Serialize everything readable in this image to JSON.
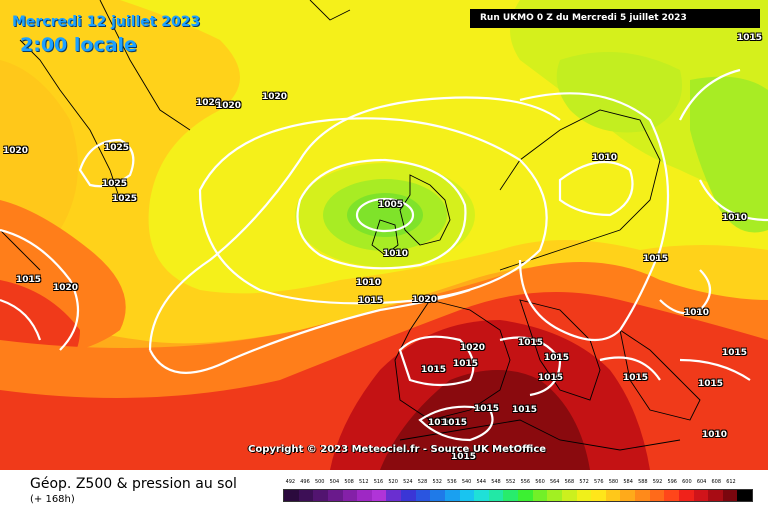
{
  "header": {
    "date": "Mercredi 12 juillet 2023",
    "time": "2:00 locale",
    "run": "Run UKMO 0 Z du Mercredi 5 juillet 2023"
  },
  "copyright": "Copyright © 2023 Meteociel.fr - Source UK MetOffice",
  "isobar_labels": [
    {
      "text": "1020"
    },
    {
      "text": "1025"
    },
    {
      "text": "1025"
    },
    {
      "text": "1025"
    },
    {
      "text": "1020"
    },
    {
      "text": "1020"
    },
    {
      "text": "1020"
    },
    {
      "text": "1005"
    },
    {
      "text": "1010"
    },
    {
      "text": "1010"
    },
    {
      "text": "1015"
    },
    {
      "text": "1020"
    },
    {
      "text": "1015"
    },
    {
      "text": "1020"
    },
    {
      "text": "1010"
    },
    {
      "text": "1015"
    },
    {
      "text": "1010"
    },
    {
      "text": "1015"
    },
    {
      "text": "1010"
    },
    {
      "text": "1015"
    },
    {
      "text": "1020"
    },
    {
      "text": "1015"
    },
    {
      "text": "1015"
    },
    {
      "text": "1015"
    },
    {
      "text": "1015"
    },
    {
      "text": "1015"
    },
    {
      "text": "1015"
    },
    {
      "text": "1015"
    },
    {
      "text": "1015"
    },
    {
      "text": "1010"
    },
    {
      "text": "1015"
    },
    {
      "text": "1015"
    },
    {
      "text": "1015"
    },
    {
      "text": "1010"
    }
  ],
  "legend": {
    "title": "Géop. Z500 & pression au sol",
    "subtitle": "(+ 168h)",
    "scale": [
      {
        "label": "492",
        "color": "#2b0a3d"
      },
      {
        "label": "496",
        "color": "#3d0f56"
      },
      {
        "label": "500",
        "color": "#521470"
      },
      {
        "label": "504",
        "color": "#6a1a8c"
      },
      {
        "label": "508",
        "color": "#8420a8"
      },
      {
        "label": "512",
        "color": "#9e28c4"
      },
      {
        "label": "516",
        "color": "#b034d8"
      },
      {
        "label": "520",
        "color": "#6a2fd0"
      },
      {
        "label": "524",
        "color": "#3a36d6"
      },
      {
        "label": "528",
        "color": "#2a55e0"
      },
      {
        "label": "532",
        "color": "#1f7ae8"
      },
      {
        "label": "536",
        "color": "#1aa0f0"
      },
      {
        "label": "540",
        "color": "#19c4f0"
      },
      {
        "label": "544",
        "color": "#1fe0d8"
      },
      {
        "label": "548",
        "color": "#22e8a6"
      },
      {
        "label": "552",
        "color": "#28ec6c"
      },
      {
        "label": "556",
        "color": "#3cf032"
      },
      {
        "label": "560",
        "color": "#72f028"
      },
      {
        "label": "564",
        "color": "#a2f022"
      },
      {
        "label": "568",
        "color": "#ccf01e"
      },
      {
        "label": "572",
        "color": "#f0f01a"
      },
      {
        "label": "576",
        "color": "#ffe61a"
      },
      {
        "label": "580",
        "color": "#ffc81a"
      },
      {
        "label": "584",
        "color": "#ffaa1a"
      },
      {
        "label": "588",
        "color": "#ff8a1a"
      },
      {
        "label": "592",
        "color": "#ff6a1a"
      },
      {
        "label": "596",
        "color": "#ff461a"
      },
      {
        "label": "600",
        "color": "#f0221a"
      },
      {
        "label": "604",
        "color": "#d0141a"
      },
      {
        "label": "608",
        "color": "#a80c14"
      },
      {
        "label": "612",
        "color": "#7a060e"
      },
      {
        "label": "",
        "color": "#000000"
      }
    ]
  },
  "colors": {
    "green": "#7fe32a",
    "yellow_green": "#d5f01c",
    "yellow": "#f5f01a",
    "light_orange": "#ffd21a",
    "orange": "#ffac1a",
    "dark_orange": "#ff7e1a",
    "red": "#f03a1a",
    "dark_red": "#c41214",
    "maroon": "#8a0a0e",
    "isobar": "#ffffff"
  }
}
